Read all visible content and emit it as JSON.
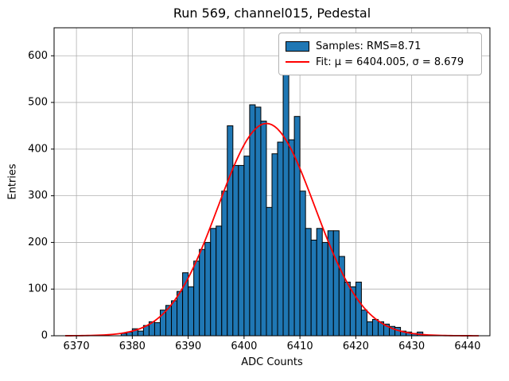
{
  "title": "Run 569, channel015, Pedestal",
  "xlabel": "ADC Counts",
  "ylabel": "Entries",
  "legend": {
    "samples_label": "Samples: RMS=8.71",
    "fit_label": "Fit: μ = 6404.005, σ = 8.679"
  },
  "colors": {
    "bar_fill": "#1f77b4",
    "bar_edge": "#000000",
    "fit_line": "#ff0000",
    "grid": "#b0b0b0",
    "axes_frame": "#000000"
  },
  "chart_data": {
    "type": "bar",
    "subtype": "histogram",
    "title": "Run 569, channel015, Pedestal",
    "xlabel": "ADC Counts",
    "ylabel": "Entries",
    "grid": true,
    "legend_position": "upper right",
    "xlim": [
      6366,
      6444
    ],
    "ylim": [
      0,
      660
    ],
    "xticks": [
      6370,
      6380,
      6390,
      6400,
      6410,
      6420,
      6430,
      6440
    ],
    "yticks": [
      0,
      100,
      200,
      300,
      400,
      500,
      600
    ],
    "bin_start": 6378,
    "bin_width": 1,
    "bin_counts": [
      5,
      8,
      15,
      10,
      22,
      30,
      28,
      55,
      65,
      75,
      95,
      135,
      105,
      160,
      185,
      200,
      230,
      235,
      310,
      450,
      365,
      365,
      385,
      495,
      490,
      460,
      275,
      390,
      415,
      570,
      420,
      470,
      310,
      230,
      205,
      230,
      200,
      225,
      225,
      170,
      115,
      105,
      115,
      55,
      30,
      35,
      30,
      25,
      20,
      18,
      10,
      8,
      5,
      8
    ],
    "fit": {
      "mu": 6404.005,
      "sigma": 8.679,
      "amplitude": 455
    },
    "rms": 8.71,
    "series": [
      {
        "name": "Samples: RMS=8.71",
        "kind": "histogram"
      },
      {
        "name": "Fit: μ = 6404.005, σ = 8.679",
        "kind": "gaussian-curve"
      }
    ]
  }
}
